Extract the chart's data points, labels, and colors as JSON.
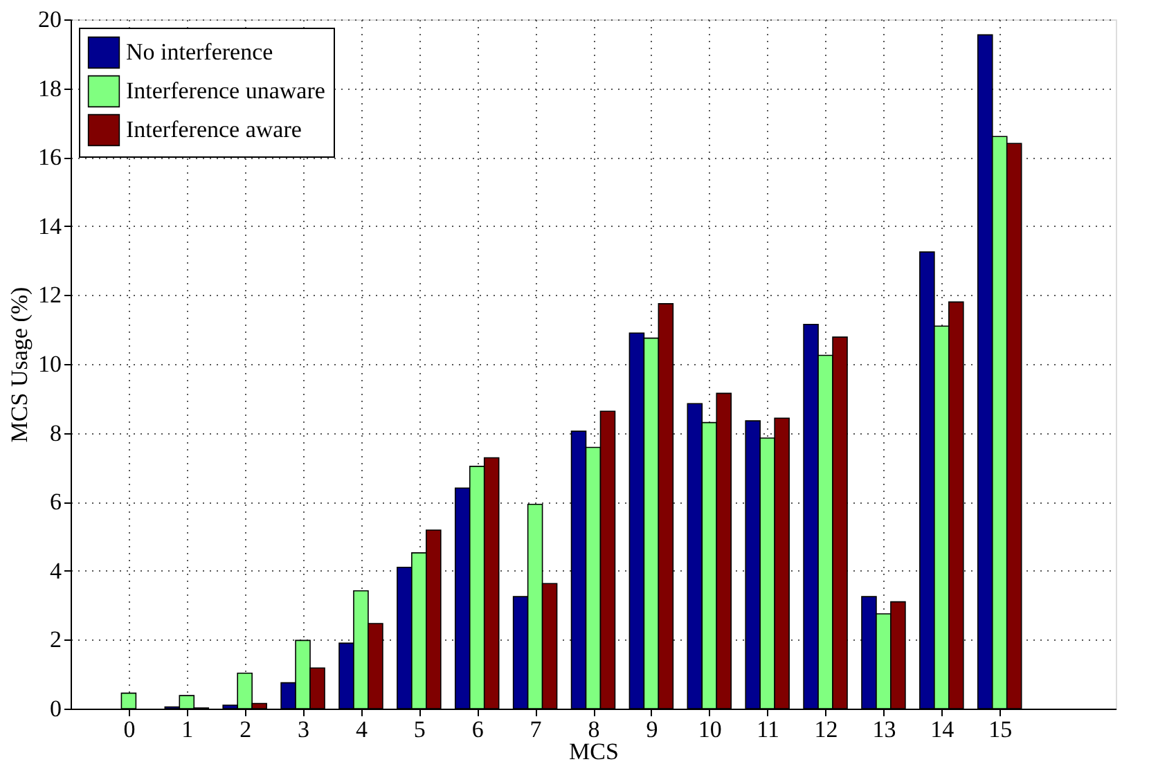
{
  "chart_data": {
    "type": "bar",
    "xlabel": "MCS",
    "ylabel": "MCS Usage (%)",
    "x": [
      0,
      1,
      2,
      3,
      4,
      5,
      6,
      7,
      8,
      9,
      10,
      11,
      12,
      13,
      14,
      15
    ],
    "xlim": [
      -1,
      17
    ],
    "xticks": [
      0,
      1,
      2,
      3,
      4,
      5,
      6,
      7,
      8,
      9,
      10,
      11,
      12,
      13,
      14,
      15
    ],
    "ylim": [
      0,
      20
    ],
    "yticks": [
      0,
      2,
      4,
      6,
      8,
      10,
      12,
      14,
      16,
      18,
      20
    ],
    "grid": true,
    "legend": "top left",
    "series": [
      {
        "name": "No interference",
        "color": "#00008f",
        "values": [
          0,
          0.05,
          0.1,
          0.75,
          1.9,
          4.1,
          6.4,
          3.25,
          8.05,
          10.9,
          8.85,
          8.35,
          11.15,
          3.25,
          13.25,
          19.55
        ]
      },
      {
        "name": "Interference unaware",
        "color": "#80ff80",
        "values": [
          0.45,
          0.38,
          1.03,
          1.98,
          3.42,
          4.52,
          7.03,
          5.93,
          7.58,
          10.75,
          8.3,
          7.85,
          10.25,
          2.75,
          11.1,
          16.6
        ]
      },
      {
        "name": "Interference aware",
        "color": "#800000",
        "values": [
          0,
          0.02,
          0.15,
          1.18,
          2.47,
          5.18,
          7.28,
          3.63,
          8.63,
          11.75,
          9.15,
          8.43,
          10.78,
          3.1,
          11.8,
          16.4
        ]
      }
    ]
  }
}
